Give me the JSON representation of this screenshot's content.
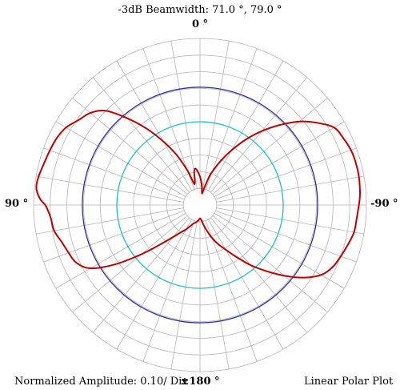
{
  "header": {
    "title": "-3dB Beamwidth: 71.0 °, 79.0 °"
  },
  "footer": {
    "amplitude_label": "Normalized Amplitude: 0.10/ Div",
    "plot_type_label": "Linear Polar Plot"
  },
  "colors": {
    "grid": "#b4b4b4",
    "pattern": "#c00000",
    "half_power_ring": "#3030a0",
    "reference_ring": "#20c0c0"
  },
  "chart_data": {
    "type": "polar-line",
    "title": "-3dB Beamwidth: 71.0 °, 79.0 °",
    "angle_labels": {
      "top": "0 °",
      "left": "90 °",
      "right": "-90 °",
      "bottom": "±180 °"
    },
    "r_range": [
      0,
      1.0
    ],
    "r_division": 0.1,
    "angular_grid_step_deg": 10,
    "angle_direction": "counterclockwise, 0 ° at top, 90 ° at left",
    "grid": true,
    "reference_circles": [
      {
        "r": 0.707,
        "color": "#3030a0"
      },
      {
        "r": 0.5,
        "color": "#20c0c0"
      }
    ],
    "series": [
      {
        "color": "#c00000",
        "angle_deg": [
          0,
          5,
          8,
          10,
          12,
          15,
          18,
          20,
          25,
          30,
          35,
          40,
          45,
          50,
          55,
          60,
          65,
          70,
          75,
          80,
          83,
          85,
          88,
          90,
          92,
          95,
          100,
          105,
          110,
          115,
          120,
          125,
          130,
          135,
          140,
          145,
          150,
          155,
          160,
          165,
          170,
          175,
          180,
          185,
          190,
          195,
          200,
          205,
          210,
          215,
          220,
          225,
          230,
          235,
          240,
          245,
          250,
          255,
          260,
          265,
          268,
          270,
          272,
          275,
          280,
          285,
          290,
          295,
          300,
          305,
          310,
          315,
          320,
          325,
          330,
          335,
          340,
          342,
          345,
          348,
          350,
          352,
          355
        ],
        "r": [
          0.17,
          0.21,
          0.22,
          0.2,
          0.15,
          0.13,
          0.17,
          0.22,
          0.33,
          0.44,
          0.56,
          0.68,
          0.8,
          0.86,
          0.89,
          0.93,
          0.95,
          0.96,
          0.97,
          0.985,
          0.99,
          0.985,
          0.96,
          0.93,
          0.915,
          0.9,
          0.89,
          0.86,
          0.84,
          0.82,
          0.76,
          0.62,
          0.46,
          0.33,
          0.25,
          0.2,
          0.17,
          0.14,
          0.12,
          0.11,
          0.1,
          0.09,
          0.08,
          0.09,
          0.12,
          0.16,
          0.21,
          0.26,
          0.31,
          0.38,
          0.47,
          0.56,
          0.66,
          0.76,
          0.84,
          0.88,
          0.9,
          0.92,
          0.94,
          0.945,
          0.95,
          0.955,
          0.96,
          0.965,
          0.97,
          0.97,
          0.965,
          0.95,
          0.93,
          0.86,
          0.78,
          0.68,
          0.58,
          0.48,
          0.38,
          0.29,
          0.21,
          0.18,
          0.12,
          0.08,
          0.07,
          0.08,
          0.12
        ]
      }
    ]
  }
}
